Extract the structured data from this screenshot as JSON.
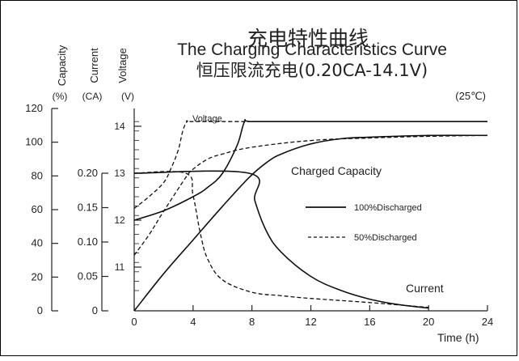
{
  "chart_data": {
    "type": "line",
    "title_cn": "充电特性曲线",
    "title": "The Charging Characteristics Curve",
    "subtitle": "恒压限流充电(0.20CA-14.1V)",
    "temperature": "(25℃)",
    "xlabel": "Time (h)",
    "xlim": [
      0,
      24
    ],
    "x_ticks": [
      "0",
      "4",
      "8",
      "12",
      "16",
      "20",
      "24"
    ],
    "axes": {
      "capacity": {
        "title": "Capacity",
        "unit": "(%)",
        "range": [
          0,
          120
        ],
        "ticks": [
          "0",
          "20",
          "40",
          "60",
          "80",
          "100",
          "120"
        ]
      },
      "current": {
        "title": "Current",
        "unit": "(CA)",
        "range": [
          0,
          0.2
        ],
        "ticks": [
          "0",
          "0.05",
          "0.10",
          "0.15",
          "0.20"
        ]
      },
      "voltage": {
        "title": "Voltage",
        "unit": "(V)",
        "range": [
          10.2,
          14.3
        ],
        "ticks": [
          "11",
          "12",
          "13",
          "14"
        ]
      }
    },
    "annotations": {
      "voltage": "Voltage",
      "charged_capacity": "Charged Capacity",
      "current": "Current"
    },
    "legend": {
      "placement": "center-right",
      "entries": [
        {
          "label": "100%Discharged",
          "style": "solid"
        },
        {
          "label": "50%Discharged",
          "style": "dashed"
        }
      ]
    },
    "series": [
      {
        "name": "Voltage",
        "group": "100%Discharged",
        "axis": "voltage",
        "style": "solid",
        "x": [
          0,
          2,
          4,
          5,
          6,
          7,
          7.5,
          8,
          12,
          16,
          20,
          24
        ],
        "y": [
          12.0,
          12.2,
          12.5,
          12.7,
          13.0,
          13.6,
          14.1,
          14.1,
          14.1,
          14.1,
          14.1,
          14.1
        ]
      },
      {
        "name": "Voltage",
        "group": "50%Discharged",
        "axis": "voltage",
        "style": "dashed",
        "x": [
          0,
          1,
          2,
          2.5,
          3,
          3.3,
          3.6,
          4,
          8,
          12,
          16,
          20,
          24
        ],
        "y": [
          12.25,
          12.5,
          12.8,
          13.1,
          13.5,
          13.9,
          14.1,
          14.1,
          14.1,
          14.1,
          14.1,
          14.1,
          14.1
        ]
      },
      {
        "name": "Current",
        "group": "100%Discharged",
        "axis": "current",
        "style": "solid",
        "x": [
          0,
          7.8,
          8.2,
          9,
          10,
          12,
          14,
          16,
          18,
          20
        ],
        "y": [
          0.2,
          0.2,
          0.16,
          0.115,
          0.085,
          0.05,
          0.03,
          0.017,
          0.009,
          0.004
        ]
      },
      {
        "name": "Current",
        "group": "50%Discharged",
        "axis": "current",
        "style": "dashed",
        "x": [
          0,
          3.5,
          4,
          4.5,
          5,
          6,
          8,
          10,
          12,
          16,
          20
        ],
        "y": [
          0.2,
          0.2,
          0.168,
          0.112,
          0.075,
          0.045,
          0.027,
          0.022,
          0.018,
          0.012,
          0.005
        ]
      },
      {
        "name": "Charged Capacity",
        "group": "100%Discharged",
        "axis": "capacity",
        "style": "solid",
        "x": [
          0,
          2,
          4,
          6,
          7.8,
          9,
          10,
          12,
          14,
          16,
          20,
          24
        ],
        "y": [
          0,
          22,
          42,
          62,
          79,
          88,
          93,
          99,
          102,
          103,
          104,
          104
        ]
      },
      {
        "name": "Charged Capacity",
        "group": "50%Discharged",
        "axis": "capacity",
        "style": "dashed",
        "x": [
          0,
          1,
          2,
          3.5,
          4,
          5,
          6,
          8,
          12,
          16,
          20,
          24
        ],
        "y": [
          33,
          45,
          59,
          79,
          84,
          90,
          93,
          97,
          101,
          102.5,
          103.5,
          104
        ]
      }
    ]
  }
}
